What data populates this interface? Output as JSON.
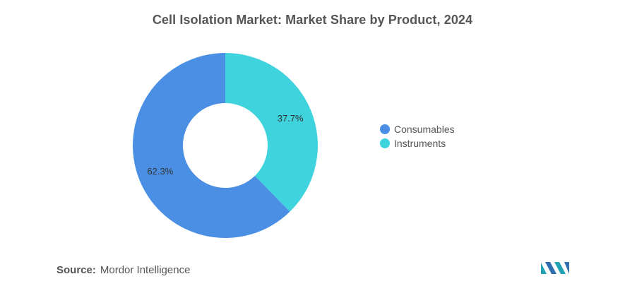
{
  "chart_data": {
    "type": "pie",
    "title": "Cell Isolation Market: Market Share by Product, 2024",
    "categories": [
      "Consumables",
      "Instruments"
    ],
    "values": [
      62.3,
      37.7
    ],
    "data_labels": [
      "62.3%",
      "37.7%"
    ],
    "colors": [
      "#4a8fe3",
      "#3fd3dd"
    ],
    "donut": true,
    "legend": "right"
  },
  "source": {
    "label": "Source:",
    "text": "Mordor Intelligence"
  },
  "logo": {
    "name": "mordor-intelligence-logo",
    "color": "#1fa3b4"
  }
}
